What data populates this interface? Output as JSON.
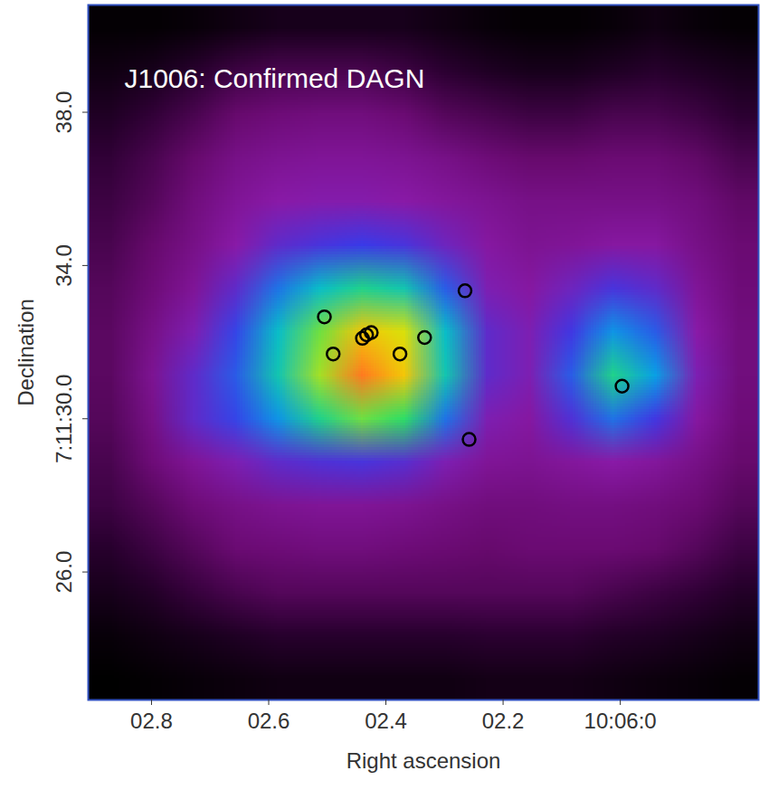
{
  "chart_data": {
    "type": "heatmap",
    "title": "J1006: Confirmed DAGN",
    "x_label": "Right ascension",
    "y_label": "Declination",
    "xlim": [
      2.908,
      1.764
    ],
    "ylim": [
      22.66,
      40.8
    ],
    "xticks": [
      {
        "value": 2.8,
        "label": "02.8"
      },
      {
        "value": 2.6,
        "label": "02.6"
      },
      {
        "value": 2.4,
        "label": "02.4"
      },
      {
        "value": 2.2,
        "label": "02.2"
      },
      {
        "value": 2.0,
        "label": "10:06:0"
      }
    ],
    "yticks": [
      {
        "value": 38,
        "label": "38.0"
      },
      {
        "value": 34,
        "label": "34.0"
      },
      {
        "value": 30,
        "label": "7:11:30.0"
      },
      {
        "value": 26,
        "label": "26.0"
      }
    ],
    "cells": [
      [
        0.05,
        0.05,
        0.06,
        0.08,
        0.1,
        0.1,
        0.1,
        0.1,
        0.08,
        0.06,
        0.05,
        0.05,
        0.06,
        0.08,
        0.06,
        0.05
      ],
      [
        0.08,
        0.1,
        0.14,
        0.18,
        0.2,
        0.2,
        0.2,
        0.18,
        0.15,
        0.12,
        0.1,
        0.1,
        0.12,
        0.14,
        0.12,
        0.1
      ],
      [
        0.12,
        0.16,
        0.2,
        0.25,
        0.27,
        0.28,
        0.28,
        0.26,
        0.22,
        0.2,
        0.18,
        0.18,
        0.2,
        0.2,
        0.18,
        0.15
      ],
      [
        0.16,
        0.2,
        0.25,
        0.3,
        0.32,
        0.33,
        0.33,
        0.32,
        0.3,
        0.27,
        0.25,
        0.25,
        0.26,
        0.26,
        0.24,
        0.2
      ],
      [
        0.18,
        0.22,
        0.28,
        0.33,
        0.36,
        0.37,
        0.37,
        0.36,
        0.34,
        0.32,
        0.3,
        0.3,
        0.3,
        0.3,
        0.28,
        0.24
      ],
      [
        0.2,
        0.25,
        0.3,
        0.36,
        0.42,
        0.45,
        0.47,
        0.45,
        0.4,
        0.35,
        0.32,
        0.33,
        0.35,
        0.35,
        0.3,
        0.26
      ],
      [
        0.22,
        0.27,
        0.33,
        0.42,
        0.52,
        0.6,
        0.65,
        0.62,
        0.5,
        0.38,
        0.35,
        0.4,
        0.45,
        0.42,
        0.33,
        0.27
      ],
      [
        0.23,
        0.3,
        0.38,
        0.48,
        0.6,
        0.72,
        0.82,
        0.78,
        0.6,
        0.42,
        0.38,
        0.46,
        0.55,
        0.5,
        0.36,
        0.28
      ],
      [
        0.23,
        0.32,
        0.42,
        0.5,
        0.62,
        0.75,
        0.9,
        0.82,
        0.62,
        0.42,
        0.38,
        0.5,
        0.65,
        0.56,
        0.38,
        0.28
      ],
      [
        0.22,
        0.3,
        0.42,
        0.48,
        0.55,
        0.65,
        0.72,
        0.68,
        0.52,
        0.38,
        0.35,
        0.44,
        0.52,
        0.46,
        0.35,
        0.27
      ],
      [
        0.2,
        0.27,
        0.33,
        0.38,
        0.42,
        0.44,
        0.45,
        0.43,
        0.38,
        0.33,
        0.32,
        0.34,
        0.36,
        0.34,
        0.3,
        0.25
      ],
      [
        0.18,
        0.22,
        0.27,
        0.3,
        0.32,
        0.33,
        0.33,
        0.32,
        0.3,
        0.28,
        0.28,
        0.29,
        0.29,
        0.28,
        0.26,
        0.22
      ],
      [
        0.14,
        0.18,
        0.22,
        0.26,
        0.27,
        0.28,
        0.28,
        0.27,
        0.26,
        0.25,
        0.26,
        0.26,
        0.26,
        0.25,
        0.22,
        0.18
      ],
      [
        0.1,
        0.13,
        0.17,
        0.2,
        0.22,
        0.22,
        0.22,
        0.22,
        0.22,
        0.22,
        0.22,
        0.22,
        0.2,
        0.18,
        0.16,
        0.13
      ],
      [
        0.06,
        0.08,
        0.1,
        0.12,
        0.14,
        0.14,
        0.14,
        0.14,
        0.14,
        0.15,
        0.15,
        0.15,
        0.13,
        0.12,
        0.1,
        0.08
      ],
      [
        0.04,
        0.05,
        0.06,
        0.07,
        0.08,
        0.08,
        0.08,
        0.08,
        0.08,
        0.09,
        0.09,
        0.09,
        0.08,
        0.07,
        0.06,
        0.05
      ]
    ],
    "contours": {
      "x": [
        2.433,
        2.425,
        2.44,
        2.376,
        2.505,
        2.49,
        2.334,
        2.265,
        2.258,
        1.997
      ],
      "y": [
        32.19,
        32.25,
        32.1,
        31.69,
        32.66,
        31.69,
        32.12,
        33.34,
        29.46,
        30.85
      ]
    }
  }
}
